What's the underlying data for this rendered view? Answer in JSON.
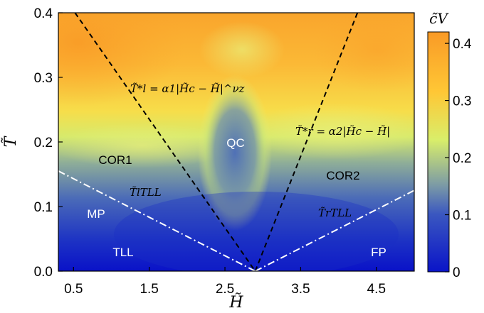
{
  "chart_data": {
    "type": "heatmap",
    "title": "",
    "xlabel": "H̃",
    "ylabel": "T̃",
    "xlim": [
      0.3,
      5.0
    ],
    "ylim": [
      0.0,
      0.4
    ],
    "x_ticks": [
      "0.5",
      "1.5",
      "2.5",
      "3.5",
      "4.5"
    ],
    "y_ticks": [
      "0.0",
      "0.1",
      "0.2",
      "0.3",
      "0.4"
    ],
    "colorbar": {
      "label": "c̃V",
      "range": [
        0,
        0.42
      ],
      "ticks": [
        "0",
        "0.1",
        "0.2",
        "0.3",
        "0.4"
      ],
      "colors": [
        "#0a14c8",
        "#3a57c0",
        "#7b9aa6",
        "#d9ee6a",
        "#ffc735",
        "#f99a26"
      ]
    },
    "critical_point": {
      "H": 2.9,
      "T": 0.0
    },
    "boundary_lines": [
      {
        "style": "dashed",
        "color": "#000000",
        "from": [
          0.52,
          0.4
        ],
        "to": [
          2.9,
          0.0
        ]
      },
      {
        "style": "dashed",
        "color": "#000000",
        "from": [
          2.9,
          0.0
        ],
        "to": [
          4.25,
          0.4
        ]
      },
      {
        "style": "dashdot",
        "color": "#ffffff",
        "from": [
          0.3,
          0.155
        ],
        "to": [
          2.9,
          0.0
        ]
      },
      {
        "style": "dashdot",
        "color": "#ffffff",
        "from": [
          2.9,
          0.0
        ],
        "to": [
          5.0,
          0.125
        ]
      }
    ],
    "regions": [
      "COR1",
      "COR2",
      "QC",
      "MP",
      "TLL",
      "FP"
    ],
    "annotations": {
      "left_crossover_lhs": "T̃*l = ",
      "left_crossover_rhs": "α1|H̃c − H̃|^νz",
      "right_crossover_lhs": "T̃*r = ",
      "right_crossover_rhs": "α2|H̃c − H̃|",
      "left_tll_label": "T̃lTLL",
      "right_tll_label": "T̃rTLL"
    }
  }
}
